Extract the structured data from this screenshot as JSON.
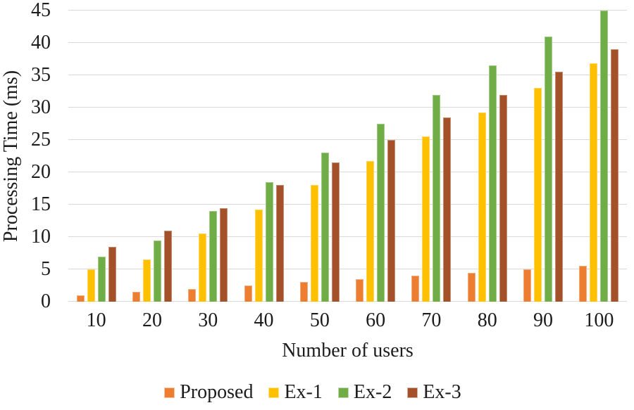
{
  "chart_data": {
    "type": "bar",
    "title": "",
    "xlabel": "Number of users",
    "ylabel": "Processing Time (ms)",
    "categories": [
      "10",
      "20",
      "30",
      "40",
      "50",
      "60",
      "70",
      "80",
      "90",
      "100"
    ],
    "series": [
      {
        "name": "Proposed",
        "color": "#ED7D31",
        "values": [
          1,
          1.5,
          2,
          2.5,
          3,
          3.5,
          4,
          4.5,
          5,
          5.5
        ]
      },
      {
        "name": "Ex-1",
        "color": "#FFC000",
        "values": [
          5,
          6.5,
          10.5,
          14.2,
          18,
          21.7,
          25.5,
          29.2,
          33,
          36.8
        ]
      },
      {
        "name": "Ex-2",
        "color": "#70AD47",
        "values": [
          7,
          9.5,
          14,
          18.5,
          23,
          27.5,
          32,
          36.5,
          41,
          45
        ]
      },
      {
        "name": "Ex-3",
        "color": "#A4512A",
        "values": [
          8.5,
          11,
          14.5,
          18,
          21.5,
          25,
          28.5,
          32,
          35.5,
          39
        ]
      }
    ],
    "ylim": [
      0,
      45
    ],
    "yticks": [
      0,
      5,
      10,
      15,
      20,
      25,
      30,
      35,
      40,
      45
    ],
    "grid": "horizontal",
    "gridline_color": "#D9D9D9",
    "legend_position": "bottom",
    "legend_labels": [
      "Proposed",
      "Ex-1",
      "Ex-2",
      "Ex-3"
    ],
    "text_color": "#1C1C1C",
    "background_color": "#FFFFFF"
  }
}
